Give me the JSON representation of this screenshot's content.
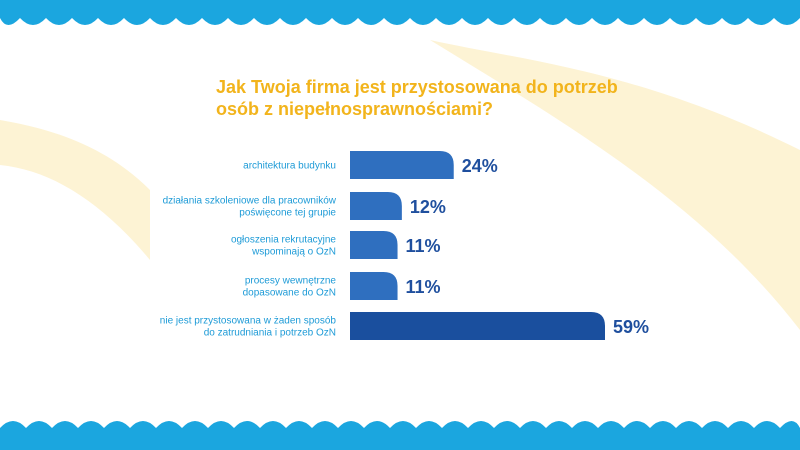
{
  "colors": {
    "background": "#ffffff",
    "wave": "#1ba6df",
    "swoosh": "#fdf3d4",
    "title": "#f2b41c",
    "bar": "#2f6fbf",
    "bar_highlight": "#1a4f9e",
    "category_text": "#1e9bd7",
    "value_text": "#1f4f9e"
  },
  "chart_data": {
    "type": "bar",
    "orientation": "horizontal",
    "title": "Jak Twoja firma jest przystosowana do potrzeb\nosób z niepełnosprawnościami?",
    "categories": [
      [
        "architektura budynku"
      ],
      [
        "działania szkoleniowe dla pracowników",
        "poświęcone tej grupie"
      ],
      [
        "ogłoszenia rekrutacyjne",
        "wspominają o OzN"
      ],
      [
        "procesy wewnętrzne",
        "dopasowane do OzN"
      ],
      [
        "nie jest przystosowana w żaden sposób",
        "do zatrudniania i potrzeb OzN"
      ]
    ],
    "values": [
      24,
      12,
      11,
      11,
      59
    ],
    "value_labels": [
      "24%",
      "12%",
      "11%",
      "11%",
      "59%"
    ],
    "unit": "%",
    "xlim": [
      0,
      59
    ],
    "grid": false,
    "legend": "none"
  }
}
